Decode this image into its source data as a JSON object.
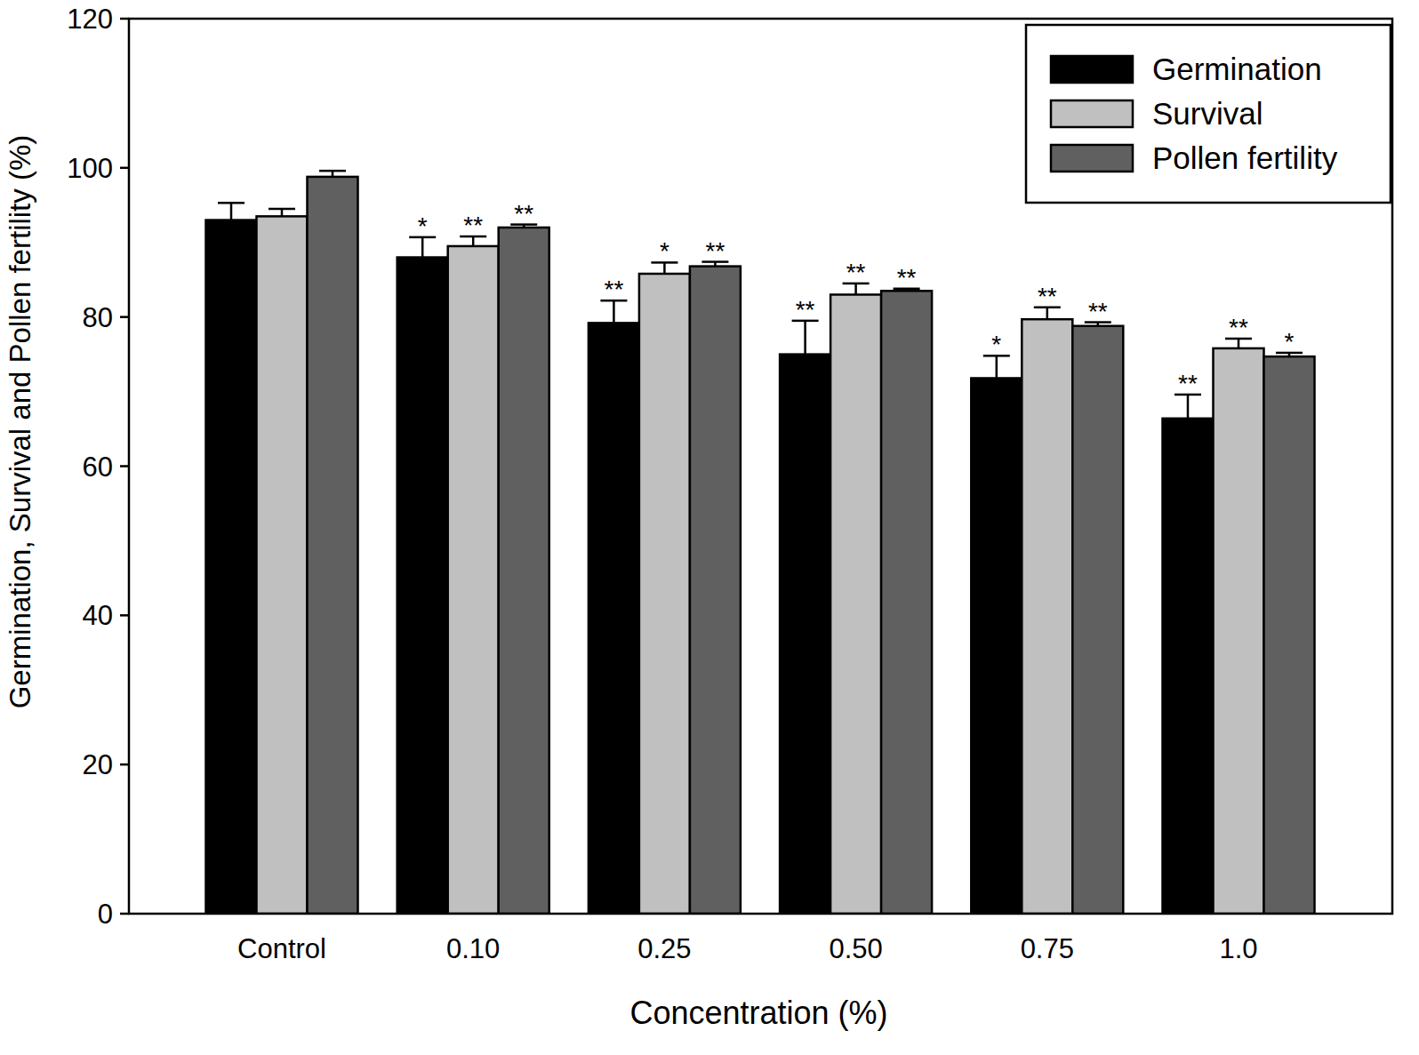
{
  "chart_data": {
    "type": "bar",
    "x_label": "Concentration (%)",
    "y_label": "Germination, Survival and Pollen fertility (%)",
    "categories": [
      "Control",
      "0.10",
      "0.25",
      "0.50",
      "0.75",
      "1.0"
    ],
    "series": [
      {
        "name": "Germination",
        "color": "#000000",
        "values": [
          93,
          88,
          79.2,
          75,
          71.8,
          66.4
        ],
        "errors": [
          2.3,
          2.7,
          3,
          4.5,
          3,
          3.2
        ],
        "significance": [
          null,
          "*",
          "**",
          "**",
          "*",
          "**"
        ]
      },
      {
        "name": "Survival",
        "color": "#c0c0c0",
        "values": [
          93.5,
          89.5,
          85.8,
          83,
          79.7,
          75.8
        ],
        "errors": [
          1,
          1.3,
          1.5,
          1.5,
          1.6,
          1.3
        ],
        "significance": [
          null,
          "**",
          "*",
          "**",
          "**",
          "**"
        ]
      },
      {
        "name": "Pollen fertility",
        "color": "#606060",
        "values": [
          98.8,
          92,
          86.8,
          83.5,
          78.8,
          74.7
        ],
        "errors": [
          0.8,
          0.4,
          0.6,
          0.3,
          0.5,
          0.5
        ],
        "significance": [
          null,
          "**",
          "**",
          "**",
          "**",
          "*"
        ]
      }
    ],
    "ylim": [
      0,
      120
    ],
    "yticks": [
      0,
      20,
      40,
      60,
      80,
      100,
      120
    ],
    "legend": "top-right",
    "grid": false
  }
}
